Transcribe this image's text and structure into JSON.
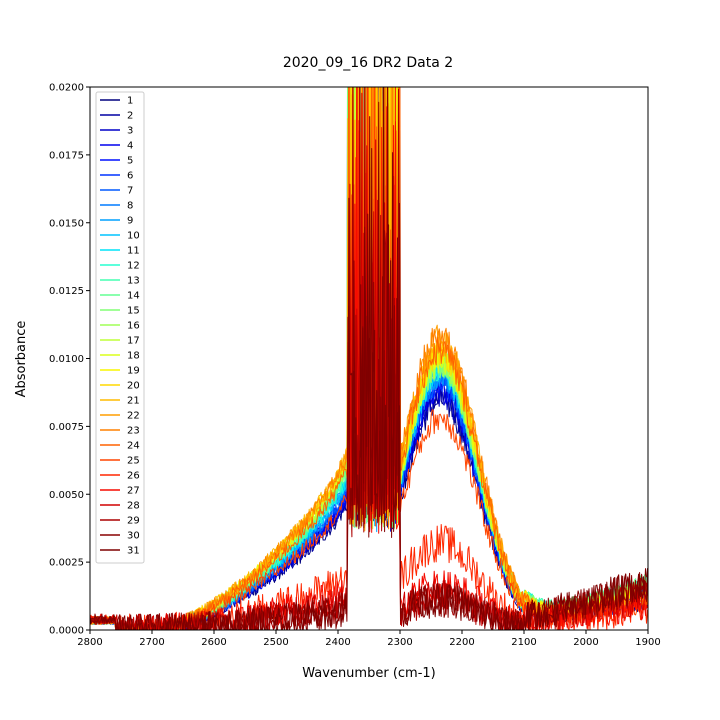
{
  "chart_data": {
    "type": "line",
    "title": "2020_09_16 DR2 Data 2",
    "xlabel": "Wavenumber (cm-1)",
    "ylabel": "Absorbance",
    "xlim": [
      2800,
      1900
    ],
    "ylim": [
      0,
      0.02
    ],
    "x_ticks": [
      2800,
      2700,
      2600,
      2500,
      2400,
      2300,
      2200,
      2100,
      2000,
      1900
    ],
    "x_tick_labels": [
      "2800",
      "2700",
      "2600",
      "2500",
      "2400",
      "2300",
      "2200",
      "2100",
      "2000",
      "1900"
    ],
    "y_ticks": [
      0,
      0.0025,
      0.005,
      0.0075,
      0.01,
      0.0125,
      0.015,
      0.0175,
      0.02
    ],
    "y_tick_labels": [
      "0.0000",
      "0.0025",
      "0.0050",
      "0.0075",
      "0.0100",
      "0.0125",
      "0.0150",
      "0.0175",
      "0.0200"
    ],
    "grid": false,
    "legend_position": "top-left",
    "colormap": "jet",
    "series": [
      {
        "name": "1",
        "color": "#00007f",
        "shoulder": 0.0045,
        "peak": 0.0092,
        "tail": 0.0012
      },
      {
        "name": "2",
        "color": "#0000a3",
        "shoulder": 0.0046,
        "peak": 0.0094,
        "tail": 0.0013
      },
      {
        "name": "3",
        "color": "#0000c8",
        "shoulder": 0.0047,
        "peak": 0.0095,
        "tail": 0.0014
      },
      {
        "name": "4",
        "color": "#0000ed",
        "shoulder": 0.0048,
        "peak": 0.0097,
        "tail": 0.0015
      },
      {
        "name": "5",
        "color": "#0010ff",
        "shoulder": 0.0049,
        "peak": 0.0099,
        "tail": 0.0016
      },
      {
        "name": "6",
        "color": "#0034ff",
        "shoulder": 0.005,
        "peak": 0.01,
        "tail": 0.0017
      },
      {
        "name": "7",
        "color": "#0058ff",
        "shoulder": 0.0051,
        "peak": 0.0101,
        "tail": 0.0018
      },
      {
        "name": "8",
        "color": "#007cff",
        "shoulder": 0.0052,
        "peak": 0.0102,
        "tail": 0.0019
      },
      {
        "name": "9",
        "color": "#00a0ff",
        "shoulder": 0.0053,
        "peak": 0.0103,
        "tail": 0.002
      },
      {
        "name": "10",
        "color": "#00c4ff",
        "shoulder": 0.0054,
        "peak": 0.0104,
        "tail": 0.0021
      },
      {
        "name": "11",
        "color": "#00e4f8",
        "shoulder": 0.0055,
        "peak": 0.0105,
        "tail": 0.0022
      },
      {
        "name": "12",
        "color": "#26ffd0",
        "shoulder": 0.0056,
        "peak": 0.0106,
        "tail": 0.0022
      },
      {
        "name": "13",
        "color": "#45ffb2",
        "shoulder": 0.0057,
        "peak": 0.0107,
        "tail": 0.0023
      },
      {
        "name": "14",
        "color": "#63ff94",
        "shoulder": 0.0058,
        "peak": 0.0107,
        "tail": 0.0023
      },
      {
        "name": "15",
        "color": "#82ff75",
        "shoulder": 0.0059,
        "peak": 0.0107,
        "tail": 0.0022
      },
      {
        "name": "16",
        "color": "#a0ff56",
        "shoulder": 0.006,
        "peak": 0.0108,
        "tail": 0.0021
      },
      {
        "name": "17",
        "color": "#bfff38",
        "shoulder": 0.0061,
        "peak": 0.0108,
        "tail": 0.002
      },
      {
        "name": "18",
        "color": "#dcff1b",
        "shoulder": 0.0062,
        "peak": 0.0109,
        "tail": 0.0019
      },
      {
        "name": "19",
        "color": "#f9f500",
        "shoulder": 0.0062,
        "peak": 0.011,
        "tail": 0.0018
      },
      {
        "name": "20",
        "color": "#ffd900",
        "shoulder": 0.0063,
        "peak": 0.0112,
        "tail": 0.0017
      },
      {
        "name": "21",
        "color": "#ffbb00",
        "shoulder": 0.0064,
        "peak": 0.0114,
        "tail": 0.0016
      },
      {
        "name": "22",
        "color": "#ff9e00",
        "shoulder": 0.0064,
        "peak": 0.0116,
        "tail": 0.0015
      },
      {
        "name": "23",
        "color": "#ff8000",
        "shoulder": 0.0063,
        "peak": 0.0118,
        "tail": 0.0014
      },
      {
        "name": "24",
        "color": "#ff6200",
        "shoulder": 0.0058,
        "peak": 0.0112,
        "tail": 0.0012
      },
      {
        "name": "25",
        "color": "#ff4500",
        "shoulder": 0.0048,
        "peak": 0.0085,
        "tail": 0.001
      },
      {
        "name": "26",
        "color": "#ff2700",
        "shoulder": 0.002,
        "peak": 0.0035,
        "tail": 0.0008
      },
      {
        "name": "27",
        "color": "#f50a00",
        "shoulder": 0.0014,
        "peak": 0.0018,
        "tail": 0.001
      },
      {
        "name": "28",
        "color": "#d10000",
        "shoulder": 0.0011,
        "peak": 0.0014,
        "tail": 0.0012
      },
      {
        "name": "29",
        "color": "#ac0000",
        "shoulder": 0.0009,
        "peak": 0.0013,
        "tail": 0.0015
      },
      {
        "name": "30",
        "color": "#880000",
        "shoulder": 0.0008,
        "peak": 0.0012,
        "tail": 0.0017
      },
      {
        "name": "31",
        "color": "#7f0000",
        "shoulder": 0.0007,
        "peak": 0.0012,
        "tail": 0.0018
      }
    ]
  }
}
